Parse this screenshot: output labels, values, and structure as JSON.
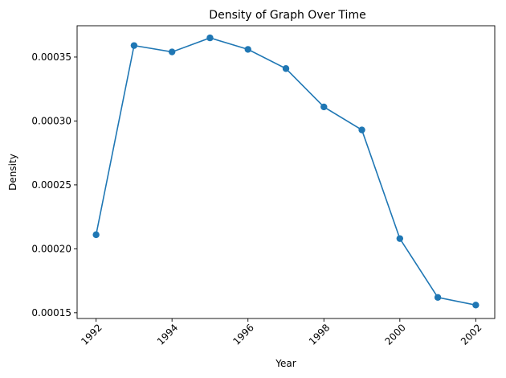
{
  "chart_data": {
    "type": "line",
    "title": "Density of Graph Over Time",
    "xlabel": "Year",
    "ylabel": "Density",
    "x": [
      1992,
      1993,
      1994,
      1995,
      1996,
      1997,
      1998,
      1999,
      2000,
      2001,
      2002
    ],
    "series": [
      {
        "values": [
          0.000211,
          0.000359,
          0.000354,
          0.000365,
          0.000356,
          0.000341,
          0.000311,
          0.000293,
          0.000208,
          0.000162,
          0.000156
        ],
        "color": "#1f77b4",
        "marker": "circle"
      }
    ],
    "xlim": [
      1991.5,
      2002.5
    ],
    "ylim": [
      0.0001455,
      0.0003745
    ],
    "xticks": [
      1992,
      1994,
      1996,
      1998,
      2000,
      2002
    ],
    "yticks": [
      0.00015,
      0.0002,
      0.00025,
      0.0003,
      0.00035
    ],
    "ytick_labels": [
      "0.00015",
      "0.00020",
      "0.00025",
      "0.00030",
      "0.00035"
    ],
    "grid": false,
    "legend": false
  }
}
